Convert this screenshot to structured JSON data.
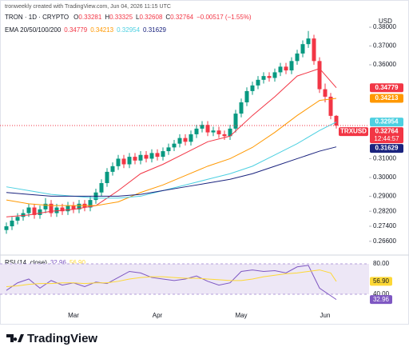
{
  "header": {
    "attribution": "tronweekly created with TradingView.com, Jun 04, 2026 11:15 UTC",
    "symbol": "TRON · 1D · CRYPTO",
    "ohlc_keys": [
      "O",
      "H",
      "L",
      "C"
    ],
    "change": "−0.00517 (−1.55%)"
  },
  "brand": "TradingView",
  "chart_data": [
    {
      "type": "candlestick",
      "currency": "USD",
      "symbol": "TRXUSD",
      "countdown": "12:44:57",
      "overlay_name": "EMA 20/50/100/200",
      "categories": [
        null,
        null,
        null,
        null,
        null,
        null,
        null,
        null,
        null,
        null,
        null,
        null,
        "Mar",
        null,
        null,
        null,
        null,
        null,
        null,
        null,
        null,
        null,
        null,
        null,
        null,
        null,
        null,
        "Apr",
        null,
        null,
        null,
        null,
        null,
        null,
        null,
        null,
        null,
        null,
        null,
        null,
        null,
        null,
        "May",
        null,
        null,
        null,
        null,
        null,
        null,
        null,
        null,
        null,
        null,
        null,
        null,
        null,
        null,
        "Jun",
        null,
        null
      ],
      "open": [
        0.272,
        0.274,
        0.277,
        0.279,
        0.281,
        0.284,
        0.28,
        0.283,
        0.286,
        0.281,
        0.284,
        0.282,
        0.285,
        0.283,
        0.286,
        0.284,
        0.288,
        0.292,
        0.297,
        0.303,
        0.306,
        0.31,
        0.307,
        0.311,
        0.309,
        0.312,
        0.31,
        0.313,
        0.311,
        0.314,
        0.316,
        0.318,
        0.321,
        0.319,
        0.323,
        0.326,
        0.328,
        0.324,
        0.325,
        0.323,
        0.322,
        0.326,
        0.334,
        0.34,
        0.346,
        0.349,
        0.352,
        0.354,
        0.353,
        0.356,
        0.359,
        0.357,
        0.362,
        0.366,
        0.371,
        0.374,
        0.362,
        0.347,
        0.343,
        0.33281
      ],
      "high": [
        0.276,
        0.279,
        0.281,
        0.283,
        0.286,
        0.286,
        0.285,
        0.289,
        0.288,
        0.286,
        0.286,
        0.287,
        0.287,
        0.288,
        0.288,
        0.29,
        0.294,
        0.299,
        0.305,
        0.308,
        0.312,
        0.312,
        0.313,
        0.313,
        0.314,
        0.314,
        0.315,
        0.315,
        0.316,
        0.318,
        0.32,
        0.323,
        0.323,
        0.325,
        0.328,
        0.33,
        0.33,
        0.327,
        0.327,
        0.325,
        0.328,
        0.336,
        0.342,
        0.348,
        0.351,
        0.354,
        0.356,
        0.356,
        0.358,
        0.361,
        0.361,
        0.364,
        0.368,
        0.373,
        0.378,
        0.376,
        0.364,
        0.35,
        0.345,
        0.33325
      ],
      "low": [
        0.27,
        0.272,
        0.275,
        0.277,
        0.279,
        0.278,
        0.278,
        0.281,
        0.279,
        0.279,
        0.28,
        0.28,
        0.281,
        0.281,
        0.282,
        0.282,
        0.286,
        0.29,
        0.295,
        0.301,
        0.304,
        0.305,
        0.305,
        0.307,
        0.307,
        0.308,
        0.308,
        0.309,
        0.309,
        0.312,
        0.314,
        0.316,
        0.317,
        0.317,
        0.321,
        0.324,
        0.322,
        0.322,
        0.321,
        0.32,
        0.32,
        0.324,
        0.332,
        0.338,
        0.344,
        0.347,
        0.35,
        0.351,
        0.351,
        0.354,
        0.355,
        0.355,
        0.36,
        0.364,
        0.369,
        0.36,
        0.345,
        0.34,
        0.331,
        0.32608
      ],
      "close": [
        0.274,
        0.277,
        0.279,
        0.281,
        0.284,
        0.28,
        0.283,
        0.286,
        0.281,
        0.284,
        0.282,
        0.285,
        0.283,
        0.286,
        0.284,
        0.288,
        0.292,
        0.297,
        0.303,
        0.306,
        0.31,
        0.307,
        0.311,
        0.309,
        0.312,
        0.31,
        0.313,
        0.311,
        0.314,
        0.316,
        0.318,
        0.321,
        0.319,
        0.323,
        0.326,
        0.328,
        0.324,
        0.325,
        0.323,
        0.322,
        0.326,
        0.334,
        0.34,
        0.346,
        0.349,
        0.352,
        0.354,
        0.353,
        0.356,
        0.359,
        0.357,
        0.362,
        0.366,
        0.371,
        0.374,
        0.362,
        0.347,
        0.343,
        0.33281,
        0.32764
      ],
      "color_up": "#089981",
      "color_down": "#f23645",
      "series": [
        {
          "color": "#f23645",
          "x": [
            0,
            4,
            8,
            12,
            16,
            20,
            24,
            28,
            32,
            36,
            40,
            44,
            48,
            52,
            56,
            59
          ],
          "values": [
            0.279,
            0.28,
            0.282,
            0.283,
            0.285,
            0.293,
            0.302,
            0.307,
            0.313,
            0.319,
            0.322,
            0.333,
            0.343,
            0.354,
            0.358,
            0.34779
          ]
        },
        {
          "color": "#ff9800",
          "x": [
            0,
            4,
            8,
            12,
            16,
            20,
            24,
            28,
            32,
            36,
            40,
            44,
            48,
            52,
            56,
            59
          ],
          "values": [
            0.288,
            0.286,
            0.285,
            0.285,
            0.285,
            0.287,
            0.292,
            0.296,
            0.301,
            0.306,
            0.31,
            0.316,
            0.324,
            0.333,
            0.341,
            0.34213
          ]
        },
        {
          "color": "#4dd0e1",
          "x": [
            0,
            4,
            8,
            12,
            16,
            20,
            24,
            28,
            32,
            36,
            40,
            44,
            48,
            52,
            56,
            59
          ],
          "values": [
            0.295,
            0.293,
            0.291,
            0.29,
            0.289,
            0.289,
            0.29,
            0.293,
            0.296,
            0.299,
            0.302,
            0.306,
            0.312,
            0.318,
            0.325,
            0.32954
          ]
        },
        {
          "color": "#1a237e",
          "x": [
            0,
            4,
            8,
            12,
            16,
            20,
            24,
            28,
            32,
            36,
            40,
            44,
            48,
            52,
            56,
            59
          ],
          "values": [
            0.292,
            0.291,
            0.29,
            0.29,
            0.29,
            0.29,
            0.291,
            0.293,
            0.295,
            0.297,
            0.299,
            0.302,
            0.306,
            0.31,
            0.314,
            0.31629
          ]
        }
      ],
      "ylim": [
        0.2591,
        0.3945
      ],
      "yticks": [
        {
          "value": 0.38,
          "label": "0.38000"
        },
        {
          "value": 0.37,
          "label": "0.37000"
        },
        {
          "value": 0.36,
          "label": "0.36000"
        },
        {
          "value": 0.31,
          "label": "0.31000"
        },
        {
          "value": 0.3,
          "label": "0.30000"
        },
        {
          "value": 0.29,
          "label": "0.29000"
        },
        {
          "value": 0.282,
          "label": "0.28200"
        },
        {
          "value": 0.274,
          "label": "0.27400"
        },
        {
          "value": 0.266,
          "label": "0.26600"
        }
      ],
      "grid": false
    },
    {
      "type": "line",
      "name": "RSI (14, close)",
      "x": [
        0,
        2,
        4,
        6,
        8,
        10,
        12,
        14,
        16,
        18,
        20,
        22,
        24,
        26,
        28,
        30,
        32,
        34,
        36,
        38,
        40,
        42,
        44,
        46,
        48,
        50,
        52,
        54,
        56,
        58,
        59
      ],
      "series": [
        {
          "color": "#7e57c2",
          "values": [
            45,
            55,
            60,
            48,
            58,
            52,
            55,
            50,
            56,
            54,
            62,
            70,
            68,
            62,
            60,
            58,
            60,
            64,
            57,
            52,
            55,
            70,
            72,
            70,
            71,
            68,
            76,
            78,
            48,
            38,
            32.96
          ]
        },
        {
          "color": "#fdd835",
          "values": [
            50,
            51,
            53,
            54,
            54,
            55,
            55,
            54,
            55,
            55,
            57,
            60,
            62,
            63,
            63,
            62,
            61,
            61,
            60,
            59,
            58,
            58,
            60,
            63,
            65,
            67,
            68,
            70,
            72,
            68,
            56.9
          ],
          "value_labels": [
            null,
            null,
            null,
            null,
            null,
            null,
            null,
            null,
            null,
            null,
            null,
            null,
            null,
            null,
            null,
            null,
            null,
            null,
            null,
            null,
            null,
            null,
            null,
            null,
            null,
            null,
            null,
            null,
            null,
            null,
            "56.90"
          ]
        }
      ],
      "ylim": [
        18.9,
        88.4
      ],
      "yticks": [
        {
          "value": 80,
          "label": "80.00"
        },
        {
          "value": 40,
          "label": "40.00"
        }
      ],
      "band_color": "#ede7f6"
    }
  ]
}
